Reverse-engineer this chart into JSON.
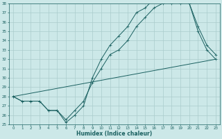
{
  "xlabel": "Humidex (Indice chaleur)",
  "bg_color": "#cce8e8",
  "grid_color": "#aacccc",
  "line_color": "#1a6060",
  "xlim": [
    -0.5,
    23.5
  ],
  "ylim": [
    25,
    38
  ],
  "yticks": [
    25,
    26,
    27,
    28,
    29,
    30,
    31,
    32,
    33,
    34,
    35,
    36,
    37,
    38
  ],
  "xticks": [
    0,
    1,
    2,
    3,
    4,
    5,
    6,
    7,
    8,
    9,
    10,
    11,
    12,
    13,
    14,
    15,
    16,
    17,
    18,
    19,
    20,
    21,
    22,
    23
  ],
  "line1_x": [
    0,
    1,
    2,
    3,
    4,
    5,
    6,
    7,
    8,
    9,
    10,
    11,
    12,
    13,
    14,
    15,
    16,
    17,
    18,
    19,
    20,
    21,
    22,
    23
  ],
  "line1_y": [
    28,
    27.5,
    27.5,
    27.5,
    26.5,
    26.5,
    25.5,
    26.5,
    27.5,
    29.5,
    31,
    32.5,
    33,
    34,
    35.5,
    36.5,
    37.5,
    38,
    38,
    38,
    38,
    35,
    33,
    32
  ],
  "line2_x": [
    0,
    1,
    2,
    3,
    4,
    5,
    6,
    7,
    8,
    9,
    10,
    11,
    12,
    13,
    14,
    15,
    16,
    17,
    18,
    19,
    20,
    21,
    22,
    23
  ],
  "line2_y": [
    28,
    27.5,
    27.5,
    27.5,
    26.5,
    26.5,
    25.2,
    26,
    27,
    30,
    32,
    33.5,
    34.5,
    35.5,
    37,
    37.5,
    38.5,
    38.5,
    38.5,
    38.5,
    38,
    35.5,
    33.5,
    32.5
  ],
  "line3_x": [
    0,
    23
  ],
  "line3_y": [
    28,
    32
  ]
}
